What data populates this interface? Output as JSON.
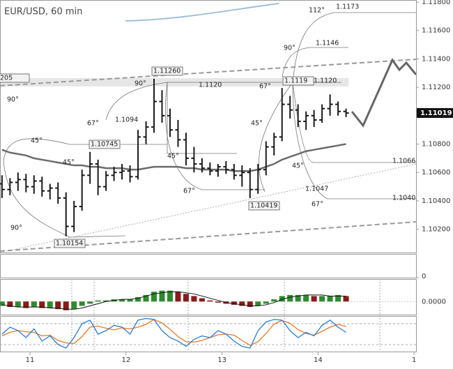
{
  "chart_data": {
    "type": "ohlc",
    "title": "EUR/USD, 60 min",
    "color": "#1a1a1a",
    "x": [
      -7,
      -5,
      -3,
      -1,
      1,
      3,
      5,
      7,
      9,
      11,
      13,
      15,
      17,
      19,
      21,
      23,
      25,
      27,
      29,
      31,
      33,
      35,
      37,
      39,
      41,
      43,
      45,
      47,
      49,
      51,
      53,
      55,
      57,
      59,
      61,
      63,
      65,
      67,
      69,
      71,
      73,
      75,
      77,
      79
    ],
    "open": [
      1.1052,
      1.1048,
      1.1053,
      1.1055,
      1.105,
      1.1054,
      1.1047,
      1.1049,
      1.1042,
      1.1022,
      1.1036,
      1.1058,
      1.1066,
      1.105,
      1.1058,
      1.106,
      1.1061,
      1.1057,
      1.1085,
      1.1092,
      1.111,
      1.11,
      1.109,
      1.1083,
      1.107,
      1.1066,
      1.1063,
      1.1061,
      1.1064,
      1.1062,
      1.1058,
      1.106,
      1.1048,
      1.1062,
      1.1078,
      1.1085,
      1.1108,
      1.1104,
      1.1096,
      1.11,
      1.1097,
      1.1105,
      1.1108,
      1.1103
    ],
    "high": [
      1.1058,
      1.1056,
      1.106,
      1.1059,
      1.1058,
      1.1057,
      1.1052,
      1.1053,
      1.1046,
      1.104,
      1.1062,
      1.10745,
      1.1069,
      1.1061,
      1.1064,
      1.1066,
      1.1065,
      1.109,
      1.1096,
      1.1126,
      1.1118,
      1.1105,
      1.1097,
      1.1088,
      1.1078,
      1.107,
      1.1067,
      1.1066,
      1.1068,
      1.1066,
      1.1065,
      1.1063,
      1.1066,
      1.1082,
      1.1088,
      1.11195,
      1.1114,
      1.1108,
      1.1103,
      1.1104,
      1.1108,
      1.1115,
      1.111,
      1.1105
    ],
    "low": [
      1.1042,
      1.1044,
      1.1047,
      1.1046,
      1.1045,
      1.1043,
      1.1041,
      1.1038,
      1.1015,
      1.1018,
      1.1033,
      1.1052,
      1.1044,
      1.1047,
      1.1054,
      1.1055,
      1.1053,
      1.1055,
      1.108,
      1.1088,
      1.1095,
      1.1085,
      1.1078,
      1.1065,
      1.106,
      1.106,
      1.1058,
      1.1057,
      1.1059,
      1.1055,
      1.105,
      1.10419,
      1.1045,
      1.1058,
      1.1072,
      1.1082,
      1.1098,
      1.1092,
      1.109,
      1.1092,
      1.1095,
      1.11,
      1.11,
      1.1099
    ],
    "close": [
      1.1048,
      1.1053,
      1.1055,
      1.105,
      1.1054,
      1.1047,
      1.1049,
      1.1042,
      1.1022,
      1.1036,
      1.1058,
      1.1066,
      1.105,
      1.1058,
      1.106,
      1.1061,
      1.1057,
      1.1085,
      1.1092,
      1.111,
      1.11,
      1.109,
      1.1083,
      1.107,
      1.1066,
      1.1063,
      1.1061,
      1.1064,
      1.1062,
      1.1058,
      1.106,
      1.1048,
      1.1062,
      1.1078,
      1.1085,
      1.1108,
      1.1104,
      1.1096,
      1.11,
      1.1097,
      1.1105,
      1.1108,
      1.1103,
      1.11019
    ],
    "xlim": [
      -7.5,
      96.5
    ],
    "xticks": [
      {
        "value": 0,
        "label": "11"
      },
      {
        "value": 24,
        "label": "12"
      },
      {
        "value": 48,
        "label": "13"
      },
      {
        "value": 72,
        "label": "14"
      },
      {
        "value": 96,
        "label": "1"
      }
    ],
    "ylim": [
      1.10036,
      1.11815
    ],
    "yticks": [
      {
        "value": 1.102,
        "label": "1.10200"
      },
      {
        "value": 1.104,
        "label": "1.10400"
      },
      {
        "value": 1.106,
        "label": "1.10600"
      },
      {
        "value": 1.108,
        "label": "1.10800"
      },
      {
        "value": 1.112,
        "label": "1.11200"
      },
      {
        "value": 1.114,
        "label": "1.11400"
      },
      {
        "value": 1.116,
        "label": "1.11600"
      },
      {
        "value": 1.118,
        "label": "1.11800"
      }
    ],
    "moving_average": {
      "color": "#6b6b6b",
      "values": [
        1.1076,
        1.1074,
        1.1073,
        1.1072,
        1.107,
        1.1069,
        1.1068,
        1.1067,
        1.1066,
        1.1065,
        1.1065,
        1.1064,
        1.1064,
        1.1063,
        1.1063,
        1.1063,
        1.1062,
        1.1062,
        1.1063,
        1.1064,
        1.1064,
        1.1064,
        1.1064,
        1.1063,
        1.1063,
        1.1062,
        1.1062,
        1.1062,
        1.1062,
        1.1061,
        1.1061,
        1.1061,
        1.1062,
        1.1064,
        1.1066,
        1.1069,
        1.1071,
        1.1073,
        1.1075,
        1.1076,
        1.1077,
        1.1078,
        1.1079,
        1.108
      ]
    },
    "annotations": [
      "205",
      "112°",
      "1.1173",
      "90°",
      "1.1146",
      "1.11260",
      "90°",
      "1.1120",
      "67°",
      "1.1119",
      "1.1120",
      "90°",
      "67°",
      "1.1094",
      "45°",
      "45°",
      "1.10745",
      "45°",
      "45°",
      "1.1066",
      "45°",
      "67°",
      "1.1047",
      "1.10419",
      "67°",
      "1.1040",
      "90°",
      "1.10154"
    ],
    "volume": {
      "ylim": [
        0,
        1
      ],
      "yticks": [
        0
      ]
    },
    "macd": {
      "ylim": [
        -0.0012,
        0.002
      ],
      "yticks": [
        {
          "value": 0,
          "label": "0.0000"
        }
      ],
      "up_color": "#2e8b2e",
      "down_color": "#8b1a1a",
      "signal_color": "#111",
      "histogram": [
        -0.0004,
        -0.0005,
        -0.0005,
        -0.0006,
        -0.0005,
        -0.0006,
        -0.0006,
        -0.0007,
        -0.0008,
        -0.0007,
        -0.0004,
        -0.0002,
        0.0001,
        0.0001,
        0.0002,
        0.0002,
        0.0002,
        0.0004,
        0.0006,
        0.0009,
        0.001,
        0.001,
        0.0009,
        0.0007,
        0.0005,
        0.0003,
        0.0001,
        -0.0001,
        -0.0002,
        -0.0003,
        -0.0004,
        -0.0005,
        -0.0004,
        -0.0002,
        0.0002,
        0.0005,
        0.0006,
        0.0006,
        0.0006,
        0.0005,
        0.0005,
        0.0005,
        0.0006,
        0.0005
      ],
      "signal": [
        -0.0003,
        -0.0004,
        -0.0005,
        -0.0005,
        -0.0005,
        -0.0005,
        -0.0006,
        -0.0006,
        -0.0007,
        -0.0007,
        -0.0006,
        -0.0004,
        -0.0002,
        0,
        0.0001,
        0.0002,
        0.0002,
        0.0003,
        0.0005,
        0.0007,
        0.0008,
        0.0009,
        0.0009,
        0.0008,
        0.0007,
        0.0005,
        0.0003,
        0.0001,
        -0.0001,
        -0.0002,
        -0.0003,
        -0.0004,
        -0.0004,
        -0.0003,
        -0.0001,
        0.0002,
        0.0004,
        0.0005,
        0.0006,
        0.0006,
        0.0006,
        0.0005,
        0.0005,
        0.0005
      ]
    },
    "stochastic": {
      "ylim": [
        0,
        100
      ],
      "levels": [
        20,
        80
      ],
      "k": {
        "color": "#2b7bd6",
        "values": [
          50,
          70,
          60,
          40,
          65,
          30,
          45,
          20,
          10,
          40,
          80,
          90,
          50,
          60,
          75,
          70,
          50,
          90,
          95,
          92,
          60,
          40,
          30,
          15,
          35,
          45,
          40,
          60,
          50,
          30,
          15,
          10,
          60,
          85,
          92,
          90,
          60,
          40,
          55,
          45,
          75,
          90,
          70,
          55
        ]
      },
      "d": {
        "color": "#e8782a",
        "values": [
          45,
          55,
          60,
          57,
          55,
          45,
          47,
          32,
          25,
          23,
          43,
          70,
          73,
          67,
          62,
          68,
          65,
          70,
          78,
          92,
          82,
          64,
          43,
          28,
          27,
          32,
          40,
          48,
          50,
          47,
          32,
          18,
          28,
          52,
          79,
          89,
          81,
          63,
          52,
          47,
          58,
          70,
          78,
          72
        ]
      }
    }
  }
}
